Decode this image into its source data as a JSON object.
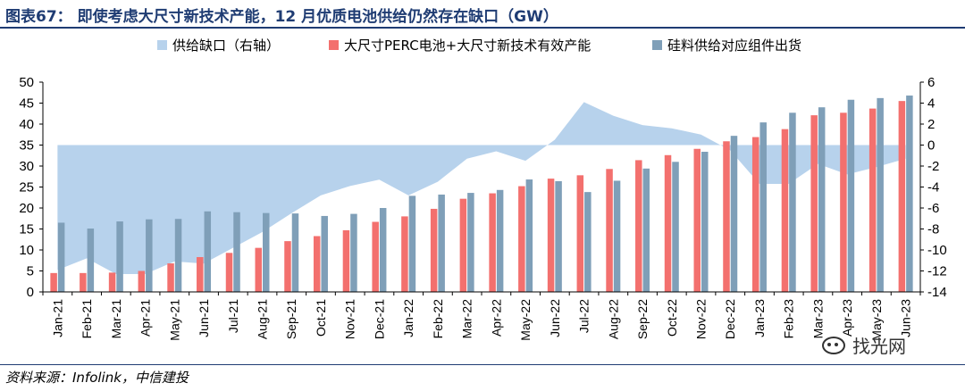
{
  "header": {
    "title": "图表67：  即使考虑大尺寸新技术产能，12 月优质电池供给仍然存在缺口（GW）"
  },
  "footer": {
    "source": "资料来源：Infolink，中信建投"
  },
  "watermark": {
    "text": "找光网"
  },
  "chart_data": {
    "type": "bar",
    "legend_position": "top",
    "grid": false,
    "categories": [
      "Jan-21",
      "Feb-21",
      "Mar-21",
      "Apr-21",
      "May-21",
      "Jun-21",
      "Jul-21",
      "Aug-21",
      "Sep-21",
      "Oct-21",
      "Nov-21",
      "Dec-21",
      "Jan-22",
      "Feb-22",
      "Mar-22",
      "Apr-22",
      "May-22",
      "Jun-22",
      "Jul-22",
      "Aug-22",
      "Sep-22",
      "Oct-22",
      "Nov-22",
      "Dec-22",
      "Jan-23",
      "Feb-23",
      "Mar-23",
      "Apr-23",
      "May-23",
      "Jun-23"
    ],
    "ylim_left": [
      0,
      50
    ],
    "yticks_left": [
      0,
      5,
      10,
      15,
      20,
      25,
      30,
      35,
      40,
      45,
      50
    ],
    "ylim_right": [
      -14,
      6
    ],
    "yticks_right": [
      -14,
      -12,
      -10,
      -8,
      -6,
      -4,
      -2,
      0,
      2,
      4,
      6
    ],
    "series": [
      {
        "name": "供给缺口（右轴）",
        "type": "area",
        "axis": "right",
        "color": "#b7d2ec",
        "values": [
          -11.9,
          -10.8,
          -12.3,
          -12.3,
          -11.1,
          -11.3,
          -9.8,
          -8.3,
          -6.5,
          -4.8,
          -3.9,
          -3.3,
          -4.8,
          -3.5,
          -1.3,
          -0.6,
          -1.5,
          0.5,
          4.1,
          2.8,
          1.9,
          1.6,
          1.0,
          -0.5,
          -3.7,
          -3.7,
          -1.8,
          -2.8,
          -2.1,
          -1.3
        ]
      },
      {
        "name": "大尺寸PERC电池+大尺寸新技术有效产能",
        "type": "bar",
        "axis": "left",
        "color": "#f3706e",
        "values": [
          4.5,
          4.5,
          4.6,
          5.0,
          6.8,
          8.3,
          9.3,
          10.5,
          12.1,
          13.3,
          14.7,
          16.7,
          18.0,
          19.8,
          22.2,
          23.5,
          25.2,
          27.0,
          27.8,
          29.3,
          31.4,
          32.6,
          34.1,
          35.9,
          36.9,
          38.8,
          42.1,
          42.7,
          43.7,
          45.5
        ]
      },
      {
        "name": "硅料供给对应组件出货",
        "type": "bar",
        "axis": "left",
        "color": "#7f9fb8",
        "values": [
          16.5,
          15.1,
          16.8,
          17.3,
          17.4,
          19.2,
          19.0,
          18.8,
          18.7,
          18.1,
          18.6,
          20.0,
          22.9,
          23.2,
          23.6,
          24.3,
          26.8,
          26.4,
          23.8,
          26.5,
          29.4,
          31.0,
          33.4,
          37.2,
          40.4,
          42.7,
          44.0,
          45.8,
          46.2,
          46.8
        ]
      }
    ]
  }
}
